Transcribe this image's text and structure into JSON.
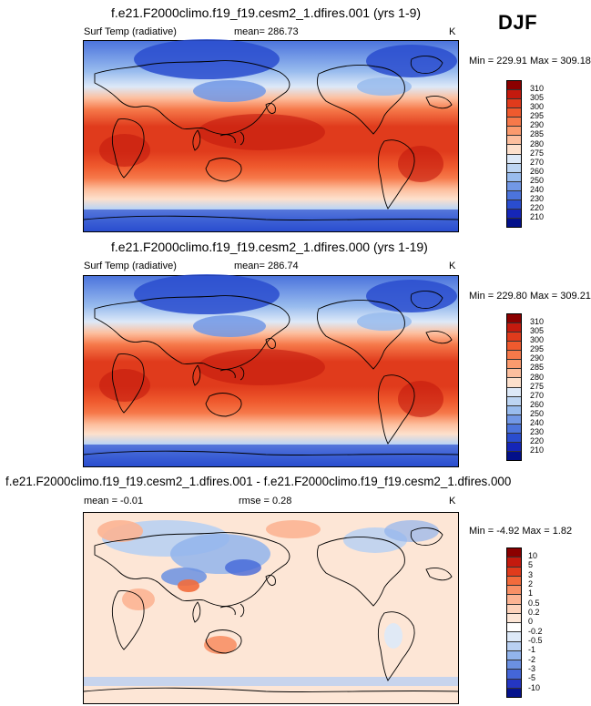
{
  "season": "DJF",
  "panels": [
    {
      "title": "f.e21.F2000climo.f19_f19.cesm2_1.dfires.001 (yrs 1-9)",
      "left_label": "Surf Temp (radiative)",
      "center_label": "mean= 286.73",
      "units": "K",
      "stats": "Min = 229.91 Max = 309.18",
      "colorbar": {
        "labels": [
          "310",
          "305",
          "300",
          "295",
          "290",
          "285",
          "280",
          "275",
          "270",
          "260",
          "250",
          "240",
          "230",
          "220",
          "210"
        ],
        "colors": [
          "#8b0000",
          "#c41a0e",
          "#e03b1c",
          "#ef5a2e",
          "#f6794a",
          "#fb9b6e",
          "#fdbf9e",
          "#fde0cc",
          "#dde9f8",
          "#bdd5f3",
          "#99bcee",
          "#7298e6",
          "#4c74dc",
          "#2a4dcf",
          "#1526b8",
          "#03108a"
        ]
      }
    },
    {
      "title": "f.e21.F2000climo.f19_f19.cesm2_1.dfires.000 (yrs 1-19)",
      "left_label": "Surf Temp (radiative)",
      "center_label": "mean= 286.74",
      "units": "K",
      "stats": "Min = 229.80 Max = 309.21",
      "colorbar": {
        "labels": [
          "310",
          "305",
          "300",
          "295",
          "290",
          "285",
          "280",
          "275",
          "270",
          "260",
          "250",
          "240",
          "230",
          "220",
          "210"
        ],
        "colors": [
          "#8b0000",
          "#c41a0e",
          "#e03b1c",
          "#ef5a2e",
          "#f6794a",
          "#fb9b6e",
          "#fdbf9e",
          "#fde0cc",
          "#dde9f8",
          "#bdd5f3",
          "#99bcee",
          "#7298e6",
          "#4c74dc",
          "#2a4dcf",
          "#1526b8",
          "#03108a"
        ]
      }
    },
    {
      "title": "f.e21.F2000climo.f19_f19.cesm2_1.dfires.001 - f.e21.F2000climo.f19_f19.cesm2_1.dfires.000",
      "left_label": "mean =  -0.01",
      "center_label": "rmse =   0.28",
      "units": "K",
      "stats": "Min =  -4.92 Max =   1.82",
      "colorbar": {
        "labels": [
          "10",
          "5",
          "3",
          "2",
          "1",
          "0.5",
          "0.2",
          "0",
          "-0.2",
          "-0.5",
          "-1",
          "-2",
          "-3",
          "-5",
          "-10"
        ],
        "colors": [
          "#8b0000",
          "#c41a0e",
          "#e03b1c",
          "#f26b3c",
          "#f89066",
          "#fcb493",
          "#fdd3bb",
          "#fde6d6",
          "#ffffff",
          "#dde9f8",
          "#b9d0f2",
          "#92b4ec",
          "#6b90e2",
          "#4466d8",
          "#2436c2",
          "#05128c"
        ]
      }
    }
  ]
}
